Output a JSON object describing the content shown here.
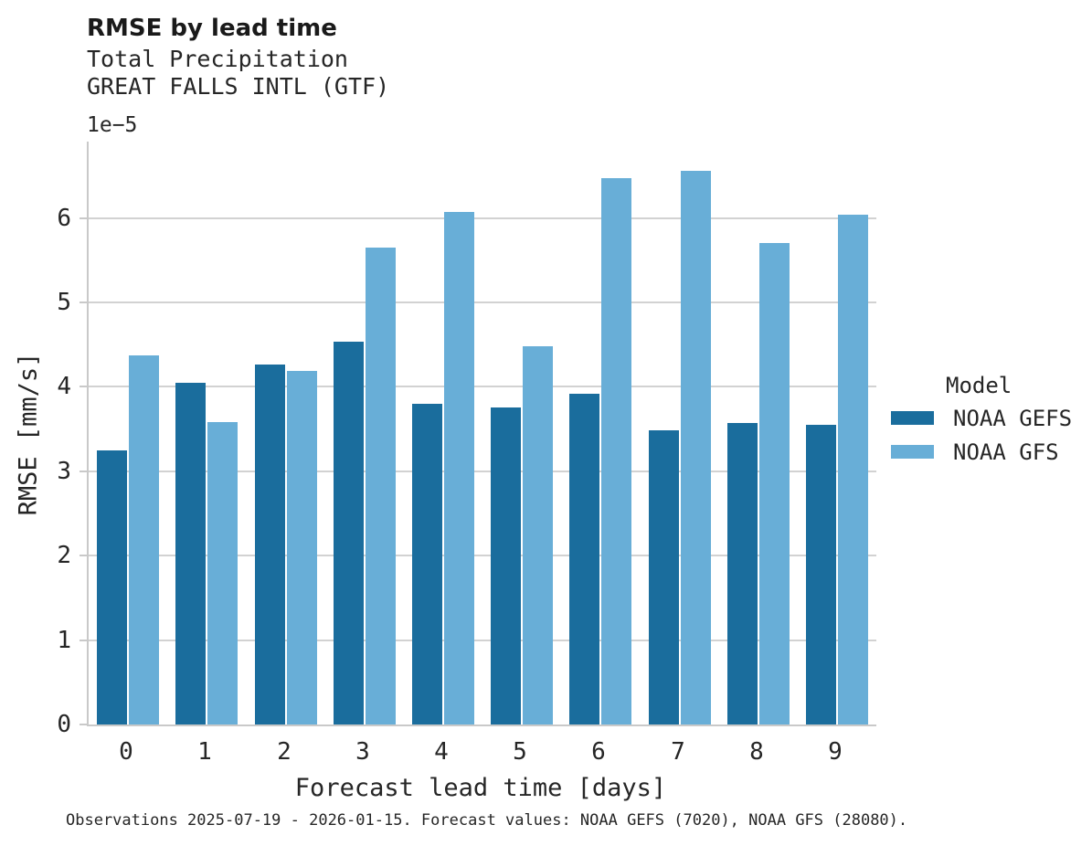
{
  "header": {
    "title": "RMSE by lead time",
    "subtitle1": "Total Precipitation",
    "subtitle2": "GREAT FALLS INTL (GTF)"
  },
  "chart_data": {
    "type": "bar",
    "title": "RMSE by lead time",
    "subtitle": [
      "Total Precipitation",
      "GREAT FALLS INTL (GTF)"
    ],
    "categories": [
      "0",
      "1",
      "2",
      "3",
      "4",
      "5",
      "6",
      "7",
      "8",
      "9"
    ],
    "series": [
      {
        "name": "NOAA GEFS",
        "color": "#1a6d9d",
        "values": [
          3.25,
          4.05,
          4.26,
          4.53,
          3.8,
          3.75,
          3.92,
          3.48,
          3.57,
          3.55
        ]
      },
      {
        "name": "NOAA GFS",
        "color": "#68aed7",
        "values": [
          4.37,
          3.58,
          4.19,
          5.65,
          6.07,
          4.48,
          6.47,
          6.56,
          5.7,
          6.04
        ]
      }
    ],
    "value_multiplier": "1e-5",
    "axis_offset_label": "1e−5",
    "xlabel": "Forecast lead time [days]",
    "ylabel": "RMSE [mm/s]",
    "ylim": [
      0,
      6.9
    ],
    "yticks": [
      "0",
      "1",
      "2",
      "3",
      "4",
      "5",
      "6"
    ],
    "grid": "horizontal",
    "legend_position": "right"
  },
  "legend": {
    "title": "Model",
    "entries": [
      {
        "label": "NOAA GEFS",
        "color": "#1a6d9d"
      },
      {
        "label": "NOAA GFS",
        "color": "#68aed7"
      }
    ]
  },
  "caption": "Observations 2025-07-19 - 2026-01-15. Forecast values: NOAA GEFS (7020), NOAA GFS (28080)."
}
